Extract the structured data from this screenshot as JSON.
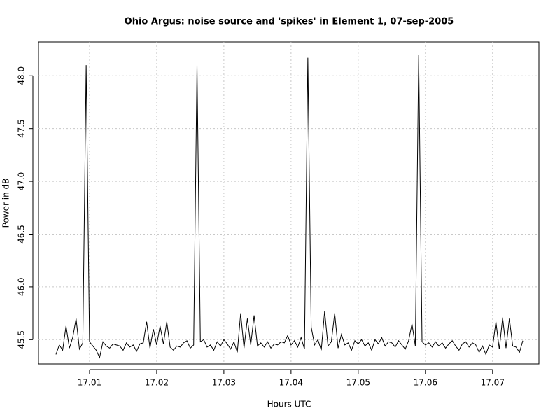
{
  "chart_data": {
    "type": "line",
    "title": "Ohio Argus: noise source and 'spikes' in Element 1, 07-sep-2005",
    "x_label": "Hours UTC",
    "y_label": "Power in dB",
    "xlim": [
      17.0024,
      17.0769
    ],
    "ylim": [
      45.27,
      48.32
    ],
    "xticks": [
      17.01,
      17.02,
      17.03,
      17.04,
      17.05,
      17.06,
      17.07
    ],
    "yticks": [
      45.5,
      {
        "value": 46,
        "label": "46.0"
      },
      46.5,
      {
        "value": 47,
        "label": "47.0"
      },
      47.5,
      {
        "value": 48,
        "label": "48.0"
      }
    ],
    "grid": true,
    "x": [
      17.005,
      17.0055,
      17.006,
      17.0065,
      17.007,
      17.0075,
      17.008,
      17.0085,
      17.009,
      17.0095,
      17.01,
      17.0105,
      17.011,
      17.0115,
      17.012,
      17.0125,
      17.013,
      17.0135,
      17.014,
      17.0145,
      17.015,
      17.0155,
      17.016,
      17.0165,
      17.017,
      17.0175,
      17.018,
      17.0185,
      17.019,
      17.0195,
      17.02,
      17.0205,
      17.021,
      17.0215,
      17.022,
      17.0225,
      17.023,
      17.0235,
      17.024,
      17.0245,
      17.025,
      17.0255,
      17.026,
      17.0265,
      17.027,
      17.0275,
      17.028,
      17.0285,
      17.029,
      17.0295,
      17.03,
      17.0305,
      17.031,
      17.0315,
      17.032,
      17.0325,
      17.033,
      17.0335,
      17.034,
      17.0345,
      17.035,
      17.0355,
      17.036,
      17.0365,
      17.037,
      17.0375,
      17.038,
      17.0385,
      17.039,
      17.0395,
      17.04,
      17.0405,
      17.041,
      17.0415,
      17.042,
      17.0425,
      17.043,
      17.0435,
      17.044,
      17.0445,
      17.045,
      17.0455,
      17.046,
      17.0465,
      17.047,
      17.0475,
      17.048,
      17.0485,
      17.049,
      17.0495,
      17.05,
      17.0505,
      17.051,
      17.0515,
      17.052,
      17.0525,
      17.053,
      17.0535,
      17.054,
      17.0545,
      17.055,
      17.0555,
      17.056,
      17.0565,
      17.057,
      17.0575,
      17.058,
      17.0585,
      17.059,
      17.0595,
      17.06,
      17.0605,
      17.061,
      17.0615,
      17.062,
      17.0625,
      17.063,
      17.0635,
      17.064,
      17.0645,
      17.065,
      17.0655,
      17.066,
      17.0665,
      17.067,
      17.0675,
      17.068,
      17.0685,
      17.069,
      17.0695,
      17.07,
      17.0705,
      17.071,
      17.0715,
      17.072,
      17.0725,
      17.073,
      17.0735,
      17.074,
      17.0745
    ],
    "series": [
      {
        "color": "#000000",
        "values": [
          45.36,
          45.45,
          45.4,
          45.63,
          45.42,
          45.52,
          45.7,
          45.41,
          45.47,
          48.1,
          45.48,
          45.44,
          45.4,
          45.33,
          45.48,
          45.44,
          45.42,
          45.46,
          45.45,
          45.44,
          45.4,
          45.47,
          45.43,
          45.45,
          45.39,
          45.46,
          45.47,
          45.67,
          45.42,
          45.6,
          45.45,
          45.63,
          45.46,
          45.67,
          45.43,
          45.4,
          45.44,
          45.43,
          45.47,
          45.49,
          45.42,
          45.45,
          48.1,
          45.48,
          45.5,
          45.43,
          45.45,
          45.4,
          45.48,
          45.44,
          45.5,
          45.46,
          45.41,
          45.48,
          45.38,
          45.75,
          45.42,
          45.7,
          45.45,
          45.73,
          45.44,
          45.47,
          45.43,
          45.48,
          45.42,
          45.46,
          45.45,
          45.48,
          45.47,
          45.54,
          45.45,
          45.49,
          45.43,
          45.52,
          45.41,
          48.17,
          45.62,
          45.45,
          45.5,
          45.4,
          45.77,
          45.44,
          45.48,
          45.75,
          45.42,
          45.55,
          45.45,
          45.47,
          45.4,
          45.49,
          45.46,
          45.5,
          45.44,
          45.47,
          45.4,
          45.5,
          45.46,
          45.52,
          45.44,
          45.48,
          45.47,
          45.43,
          45.49,
          45.45,
          45.41,
          45.49,
          45.65,
          45.44,
          48.2,
          45.48,
          45.45,
          45.47,
          45.43,
          45.48,
          45.44,
          45.47,
          45.42,
          45.46,
          45.49,
          45.44,
          45.4,
          45.46,
          45.48,
          45.43,
          45.47,
          45.45,
          45.38,
          45.44,
          45.36,
          45.45,
          45.43,
          45.67,
          45.41,
          45.71,
          45.42,
          45.7,
          45.44,
          45.43,
          45.38,
          45.49
        ]
      }
    ]
  }
}
